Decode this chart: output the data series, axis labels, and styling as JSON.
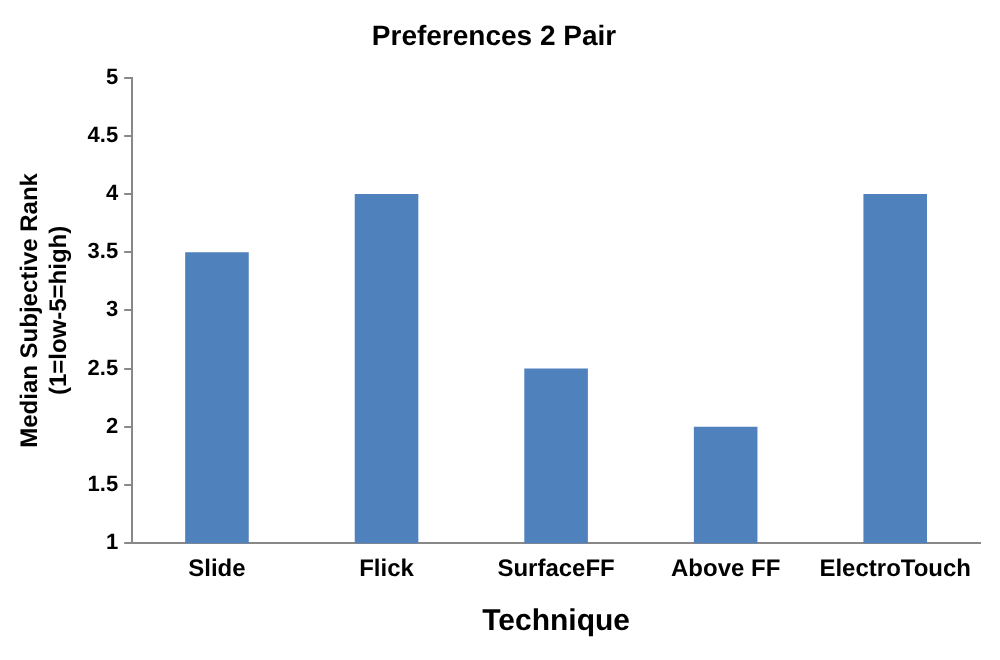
{
  "chart_data": {
    "type": "bar",
    "title": "Preferences 2 Pair",
    "xlabel": "Technique",
    "ylabel": "Median Subjective Rank\n(1=low-5=high)",
    "categories": [
      "Slide",
      "Flick",
      "SurfaceFF",
      "Above FF",
      "ElectroTouch"
    ],
    "values": [
      3.5,
      4,
      2.5,
      2,
      4
    ],
    "color": "#4f81bd",
    "ylim": [
      1,
      5
    ],
    "yticks": [
      1,
      1.5,
      2,
      2.5,
      3,
      3.5,
      4,
      4.5,
      5
    ]
  }
}
